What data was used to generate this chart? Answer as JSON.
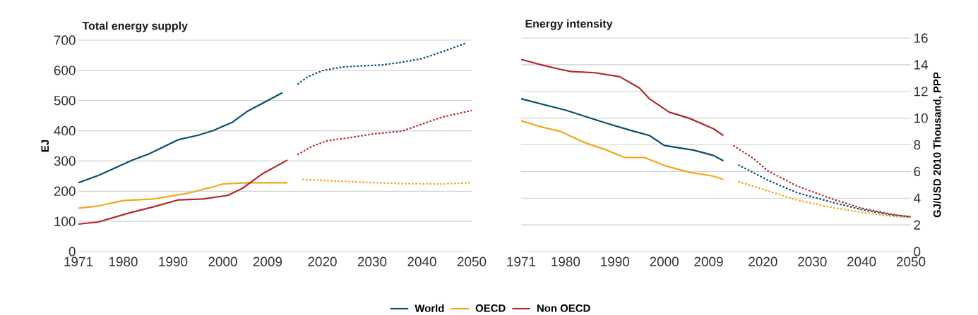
{
  "chart_data": [
    {
      "type": "line",
      "title": "Total energy supply",
      "ylabel": "EJ",
      "xlim": [
        1971,
        2050
      ],
      "xticks": [
        1971,
        1980,
        1990,
        2000,
        2009,
        2020,
        2030,
        2040,
        2050
      ],
      "ylim": [
        0,
        700
      ],
      "yticks": [
        0,
        100,
        200,
        300,
        400,
        500,
        600,
        700
      ],
      "grid": "y",
      "legend": "bottom",
      "series": [
        {
          "name": "World",
          "color": "#0b4f6c",
          "line_style": "solid",
          "x": [
            1971,
            1975,
            1982,
            1985,
            1991,
            1995,
            1998,
            2002,
            2005,
            2009,
            2012
          ],
          "values": [
            228,
            252,
            304,
            322,
            370,
            385,
            400,
            429,
            465,
            500,
            526
          ]
        },
        {
          "color": "#0b4f6c",
          "line_style": "dotted",
          "x": [
            2015,
            2017,
            2020,
            2024,
            2028,
            2032,
            2036,
            2040,
            2044,
            2049
          ],
          "values": [
            554,
            578,
            599,
            611,
            615,
            618,
            627,
            639,
            661,
            691
          ]
        },
        {
          "name": "OECD",
          "color": "#f2a71b",
          "line_style": "solid",
          "x": [
            1971,
            1975,
            1980,
            1986,
            1993,
            1998,
            2000,
            2005,
            2008,
            2013
          ],
          "values": [
            144,
            151,
            169,
            174,
            193,
            214,
            224,
            228,
            228,
            228
          ]
        },
        {
          "color": "#f2a71b",
          "line_style": "dotted",
          "x": [
            2016,
            2022,
            2028,
            2036,
            2044,
            2050
          ],
          "values": [
            239,
            234,
            230,
            225,
            224,
            228
          ]
        },
        {
          "name": "Non OECD",
          "color": "#b1282e",
          "line_style": "solid",
          "x": [
            1971,
            1975,
            1981,
            1986,
            1991,
            1996,
            2001,
            2004,
            2008,
            2013
          ],
          "values": [
            91,
            98,
            127,
            148,
            171,
            174,
            186,
            210,
            258,
            303
          ]
        },
        {
          "color": "#b1282e",
          "line_style": "dotted",
          "x": [
            2015,
            2018,
            2021,
            2025,
            2030,
            2036,
            2040,
            2044,
            2050
          ],
          "values": [
            321,
            349,
            367,
            376,
            389,
            399,
            422,
            445,
            467
          ]
        }
      ]
    },
    {
      "type": "line",
      "title": "Energy intensity",
      "ylabel": "GJ/USD 2010 Thousand, PPP",
      "xlim": [
        1971,
        2050
      ],
      "xticks": [
        1971,
        1980,
        1990,
        2000,
        2009,
        2020,
        2030,
        2040,
        2050
      ],
      "ylim": [
        0,
        16
      ],
      "yticks": [
        0,
        2,
        4,
        6,
        8,
        10,
        12,
        14,
        16
      ],
      "grid": "y",
      "series": [
        {
          "color": "#0b4f6c",
          "line_style": "solid",
          "x": [
            1971,
            1980,
            1988,
            1993,
            1997,
            2000,
            2006,
            2010,
            2012
          ],
          "values": [
            11.45,
            10.6,
            9.65,
            9.1,
            8.7,
            7.95,
            7.6,
            7.2,
            6.8
          ]
        },
        {
          "color": "#0b4f6c",
          "line_style": "dotted",
          "x": [
            2015,
            2021,
            2027,
            2034,
            2040,
            2046,
            2050
          ],
          "values": [
            6.5,
            5.35,
            4.4,
            3.7,
            3.15,
            2.75,
            2.6
          ]
        },
        {
          "color": "#f2a71b",
          "line_style": "solid",
          "x": [
            1971,
            1975,
            1979,
            1981,
            1984,
            1988,
            1992,
            1996,
            2000,
            2005,
            2010,
            2012
          ],
          "values": [
            9.8,
            9.35,
            9.0,
            8.65,
            8.15,
            7.65,
            7.05,
            7.05,
            6.45,
            5.95,
            5.65,
            5.4
          ]
        },
        {
          "color": "#f2a71b",
          "line_style": "dotted",
          "x": [
            2015,
            2021,
            2027,
            2034,
            2040,
            2046,
            2050
          ],
          "values": [
            5.25,
            4.55,
            3.85,
            3.3,
            2.95,
            2.65,
            2.55
          ]
        },
        {
          "color": "#b1282e",
          "line_style": "solid",
          "x": [
            1971,
            1975,
            1979,
            1981,
            1986,
            1991,
            1995,
            1997,
            2001,
            2005,
            2010,
            2012
          ],
          "values": [
            14.4,
            14.0,
            13.65,
            13.5,
            13.4,
            13.1,
            12.25,
            11.45,
            10.45,
            10.0,
            9.2,
            8.7
          ]
        },
        {
          "color": "#b1282e",
          "line_style": "dotted",
          "x": [
            2014,
            2018,
            2021,
            2027,
            2034,
            2040,
            2046,
            2050
          ],
          "values": [
            7.95,
            7.0,
            6.05,
            4.9,
            3.95,
            3.25,
            2.8,
            2.6
          ]
        }
      ]
    }
  ]
}
